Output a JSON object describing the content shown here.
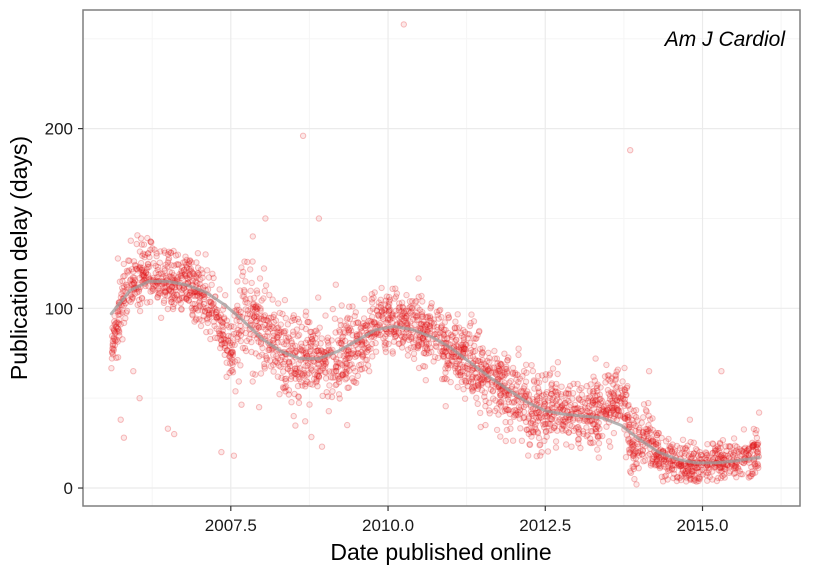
{
  "chart_data": {
    "type": "scatter",
    "title": "",
    "annotation": "Am J Cardiol",
    "xlabel": "Date published online",
    "ylabel": "Publication delay (days)",
    "xlim": [
      2005.15,
      2016.55
    ],
    "ylim": [
      -10,
      266
    ],
    "x_ticks": [
      2007.5,
      2010.0,
      2012.5,
      2015.0
    ],
    "x_tick_labels": [
      "2007.5",
      "2010.0",
      "2012.5",
      "2015.0"
    ],
    "y_ticks": [
      0,
      100,
      200
    ],
    "y_tick_labels": [
      "0",
      "100",
      "200"
    ],
    "grid": true,
    "legend": "none",
    "colors": {
      "points": "#e31a1c",
      "smooth_line": "#9e9e9e",
      "panel_border": "#7f7f7f",
      "grid_major": "#ebebeb",
      "grid_minor": "#f5f5f5"
    },
    "trend": {
      "name": "",
      "x": [
        2005.6,
        2005.9,
        2006.2,
        2006.5,
        2006.8,
        2007.1,
        2007.4,
        2007.7,
        2008.0,
        2008.3,
        2008.6,
        2008.9,
        2009.2,
        2009.5,
        2009.8,
        2010.1,
        2010.4,
        2010.7,
        2011.0,
        2011.3,
        2011.6,
        2011.9,
        2012.2,
        2012.5,
        2012.8,
        2013.1,
        2013.4,
        2013.7,
        2014.0,
        2014.3,
        2014.6,
        2014.9,
        2015.2,
        2015.5,
        2015.9
      ],
      "y": [
        97,
        110,
        115,
        115,
        113,
        109,
        102,
        93,
        83,
        76,
        72,
        72,
        76,
        82,
        88,
        90,
        88,
        84,
        78,
        70,
        62,
        55,
        48,
        43,
        41,
        40,
        39,
        35,
        27,
        20,
        16,
        14,
        14,
        15,
        17
      ]
    },
    "density_profile": {
      "x": [
        2005.6,
        2005.7,
        2005.8,
        2006.0,
        2006.3,
        2006.6,
        2007.0,
        2007.2,
        2007.5,
        2007.7,
        2007.9,
        2008.3,
        2008.6,
        2009.0,
        2009.3,
        2009.6,
        2009.9,
        2010.2,
        2010.5,
        2010.8,
        2011.1,
        2011.4,
        2011.7,
        2012.0,
        2012.3,
        2012.6,
        2012.9,
        2013.2,
        2013.5,
        2013.7,
        2013.8,
        2013.9,
        2014.1,
        2014.4,
        2014.7,
        2015.0,
        2015.3,
        2015.6,
        2015.9
      ],
      "center": [
        78,
        95,
        108,
        118,
        118,
        114,
        108,
        102,
        75,
        102,
        92,
        78,
        70,
        70,
        75,
        82,
        94,
        92,
        88,
        82,
        75,
        67,
        58,
        52,
        42,
        45,
        40,
        42,
        44,
        52,
        38,
        22,
        30,
        15,
        14,
        13,
        15,
        17,
        18
      ],
      "spread": [
        8,
        9,
        9,
        10,
        9,
        8,
        9,
        10,
        10,
        16,
        12,
        12,
        13,
        12,
        12,
        10,
        8,
        8,
        9,
        10,
        10,
        10,
        10,
        10,
        9,
        10,
        9,
        9,
        9,
        10,
        11,
        9,
        8,
        5,
        5,
        5,
        5,
        6,
        6
      ]
    },
    "outliers": [
      [
        2010.25,
        258
      ],
      [
        2008.65,
        196
      ],
      [
        2013.85,
        188
      ],
      [
        2008.9,
        150
      ],
      [
        2008.05,
        150
      ],
      [
        2007.85,
        140
      ],
      [
        2005.95,
        65
      ],
      [
        2006.05,
        50
      ],
      [
        2005.75,
        38
      ],
      [
        2006.5,
        33
      ],
      [
        2007.35,
        20
      ],
      [
        2007.55,
        18
      ],
      [
        2006.15,
        120
      ],
      [
        2007.95,
        45
      ],
      [
        2008.5,
        40
      ],
      [
        2009.7,
        65
      ],
      [
        2010.6,
        60
      ],
      [
        2011.2,
        55
      ],
      [
        2014.15,
        65
      ],
      [
        2015.3,
        65
      ],
      [
        2015.9,
        42
      ],
      [
        2013.3,
        72
      ],
      [
        2012.7,
        70
      ],
      [
        2015.5,
        8
      ],
      [
        2014.6,
        6
      ],
      [
        2008.95,
        23
      ],
      [
        2006.6,
        30
      ],
      [
        2012.95,
        58
      ],
      [
        2011.55,
        35
      ],
      [
        2009.35,
        35
      ],
      [
        2013.95,
        2
      ],
      [
        2007.1,
        130
      ],
      [
        2005.8,
        28
      ],
      [
        2014.8,
        38
      ]
    ]
  }
}
